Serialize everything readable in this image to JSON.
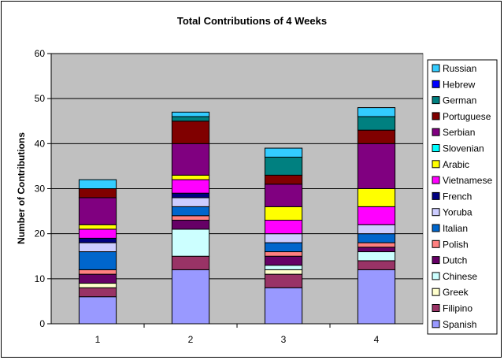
{
  "chart_data": {
    "type": "bar",
    "stacked": true,
    "title": "Total Contributions of 4 Weeks",
    "xlabel": "",
    "ylabel": "Number of Contributions",
    "ylim": [
      0,
      60
    ],
    "yticks": [
      0,
      10,
      20,
      30,
      40,
      50,
      60
    ],
    "grid": true,
    "legend_position": "right",
    "categories": [
      "1",
      "2",
      "3",
      "4"
    ],
    "series": [
      {
        "name": "Spanish",
        "color": "#9999ff",
        "values": [
          6,
          12,
          8,
          12
        ]
      },
      {
        "name": "Filipino",
        "color": "#993366",
        "values": [
          2,
          3,
          3,
          2
        ]
      },
      {
        "name": "Greek",
        "color": "#ffffcc",
        "values": [
          1,
          0,
          1,
          0
        ]
      },
      {
        "name": "Chinese",
        "color": "#ccffff",
        "values": [
          0,
          6,
          1,
          2
        ]
      },
      {
        "name": "Dutch",
        "color": "#660066",
        "values": [
          2,
          2,
          2,
          1
        ]
      },
      {
        "name": "Polish",
        "color": "#ff8080",
        "values": [
          1,
          1,
          1,
          1
        ]
      },
      {
        "name": "Italian",
        "color": "#0066cc",
        "values": [
          4,
          2,
          2,
          2
        ]
      },
      {
        "name": "Yoruba",
        "color": "#ccccff",
        "values": [
          2,
          2,
          2,
          2
        ]
      },
      {
        "name": "French",
        "color": "#000080",
        "values": [
          1,
          1,
          0,
          0
        ]
      },
      {
        "name": "Vietnamese",
        "color": "#ff00ff",
        "values": [
          2,
          3,
          3,
          4
        ]
      },
      {
        "name": "Arabic",
        "color": "#ffff00",
        "values": [
          1,
          1,
          3,
          4
        ]
      },
      {
        "name": "Slovenian",
        "color": "#00ffff",
        "values": [
          0,
          0,
          0,
          0
        ]
      },
      {
        "name": "Serbian",
        "color": "#800080",
        "values": [
          6,
          7,
          5,
          10
        ]
      },
      {
        "name": "Portuguese",
        "color": "#800000",
        "values": [
          2,
          5,
          2,
          3
        ]
      },
      {
        "name": "German",
        "color": "#008080",
        "values": [
          0,
          1,
          4,
          3
        ]
      },
      {
        "name": "Hebrew",
        "color": "#0000ff",
        "values": [
          0,
          0,
          0,
          0
        ]
      },
      {
        "name": "Russian",
        "color": "#33ccff",
        "values": [
          2,
          1,
          2,
          2
        ]
      }
    ]
  }
}
